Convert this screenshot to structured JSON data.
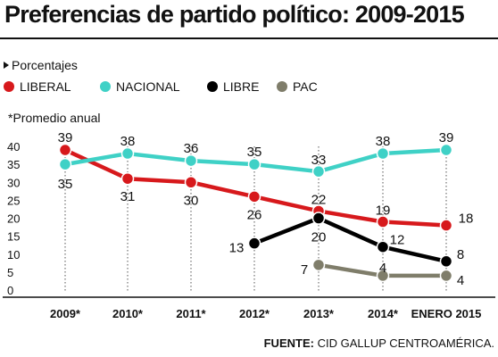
{
  "header": {
    "title": "Preferencias de partido político: 2009-2015",
    "units_label": "Porcentajes",
    "note": "*Promedio anual"
  },
  "legend": [
    {
      "name": "LIBERAL",
      "color": "#d7191c"
    },
    {
      "name": "NACIONAL",
      "color": "#3fd1c6"
    },
    {
      "name": "LIBRE",
      "color": "#000000"
    },
    {
      "name": "PAC",
      "color": "#7f7d6a"
    }
  ],
  "footer": {
    "source_label": "FUENTE:",
    "source_text": "CID GALLUP CENTROAMÉRICA."
  },
  "chart_data": {
    "type": "line",
    "title": "Preferencias de partido político: 2009-2015",
    "categories": [
      "2009*",
      "2010*",
      "2011*",
      "2012*",
      "2013*",
      "2014*",
      "ENERO 2015"
    ],
    "ylim": [
      0,
      40
    ],
    "yticks": [
      0,
      5,
      10,
      15,
      20,
      25,
      30,
      35,
      40
    ],
    "grid": false,
    "legend_position": "top",
    "series": [
      {
        "name": "LIBERAL",
        "color": "#d7191c",
        "values": [
          39,
          31,
          30,
          26,
          22,
          19,
          18
        ]
      },
      {
        "name": "NACIONAL",
        "color": "#3fd1c6",
        "values": [
          35,
          38,
          36,
          35,
          33,
          38,
          39
        ]
      },
      {
        "name": "LIBRE",
        "color": "#000000",
        "values": [
          null,
          null,
          null,
          13,
          20,
          12,
          8
        ]
      },
      {
        "name": "PAC",
        "color": "#7f7d6a",
        "values": [
          null,
          null,
          null,
          null,
          7,
          4,
          4
        ]
      }
    ]
  }
}
